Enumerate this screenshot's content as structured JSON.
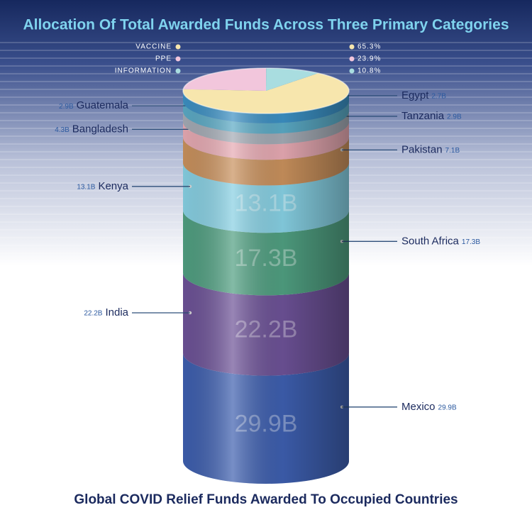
{
  "chart_data": [
    {
      "type": "pie",
      "title": "Allocation Of Total Awarded Funds Across Three Primary Categories",
      "categories": [
        "VACCINE",
        "PPE",
        "INFORMATION"
      ],
      "values": [
        65.3,
        23.9,
        10.8
      ],
      "value_labels": [
        "65.3%",
        "23.9%",
        "10.8%"
      ],
      "colors": [
        "#f7e6ad",
        "#f2c6dc",
        "#a9dde0"
      ]
    },
    {
      "type": "stacked-cylinder",
      "title": "Global COVID Relief Funds Awarded To Occupied Countries",
      "categories": [
        "Mexico",
        "India",
        "South Africa",
        "Kenya",
        "Pakistan",
        "Bangladesh",
        "Tanzania",
        "Guatemala",
        "Egypt"
      ],
      "values": [
        29.9,
        22.2,
        17.3,
        13.1,
        7.1,
        4.3,
        2.9,
        2.9,
        2.7
      ],
      "value_labels": [
        "29.9B",
        "22.2B",
        "17.3B",
        "13.1B",
        "7.1B",
        "4.3B",
        "2.9B",
        "2.9B",
        "2.7B"
      ],
      "colors": [
        "#3d5eae",
        "#6c5196",
        "#4f9e80",
        "#86cfe2",
        "#c8905c",
        "#e6a9b2",
        "#a3aab4",
        "#5aa9c4",
        "#3b8fc2"
      ]
    }
  ]
}
